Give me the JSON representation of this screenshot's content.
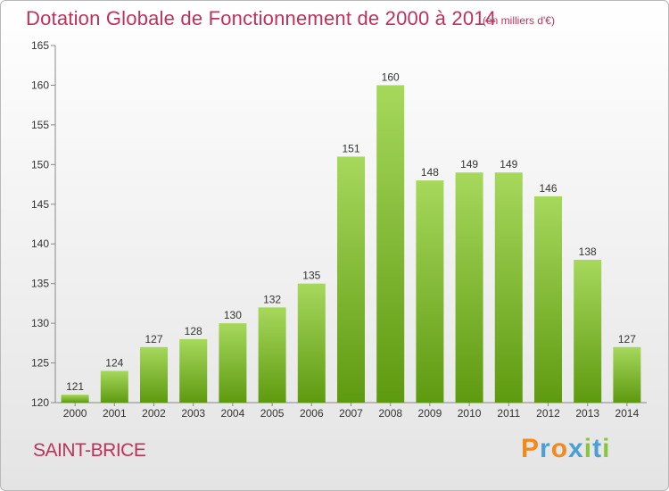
{
  "header": {
    "title": "Dotation Globale de Fonctionnement de 2000 à 2014",
    "subtitle": "(en milliers d'€)"
  },
  "footer": {
    "town": "SAINT-BRICE",
    "brand": "Proxiti"
  },
  "colors": {
    "title": "#c0305a",
    "bar_light": "#a6d85c",
    "bar_dark": "#5e9a10",
    "brand_letters": [
      "#f0891e",
      "#4a9fd8",
      "#f0891e",
      "#4a9fd8",
      "#8ac63c",
      "#4a9fd8",
      "#8ac63c"
    ]
  },
  "chart_data": {
    "type": "bar",
    "categories": [
      "2000",
      "2001",
      "2002",
      "2003",
      "2004",
      "2005",
      "2006",
      "2007",
      "2008",
      "2009",
      "2010",
      "2011",
      "2012",
      "2013",
      "2014"
    ],
    "values": [
      121,
      124,
      127,
      128,
      130,
      132,
      135,
      151,
      160,
      148,
      149,
      149,
      146,
      138,
      127
    ],
    "ylim": [
      120,
      165
    ],
    "yticks": [
      120,
      125,
      130,
      135,
      140,
      145,
      150,
      155,
      160,
      165
    ],
    "grid": false,
    "legend": "none"
  }
}
